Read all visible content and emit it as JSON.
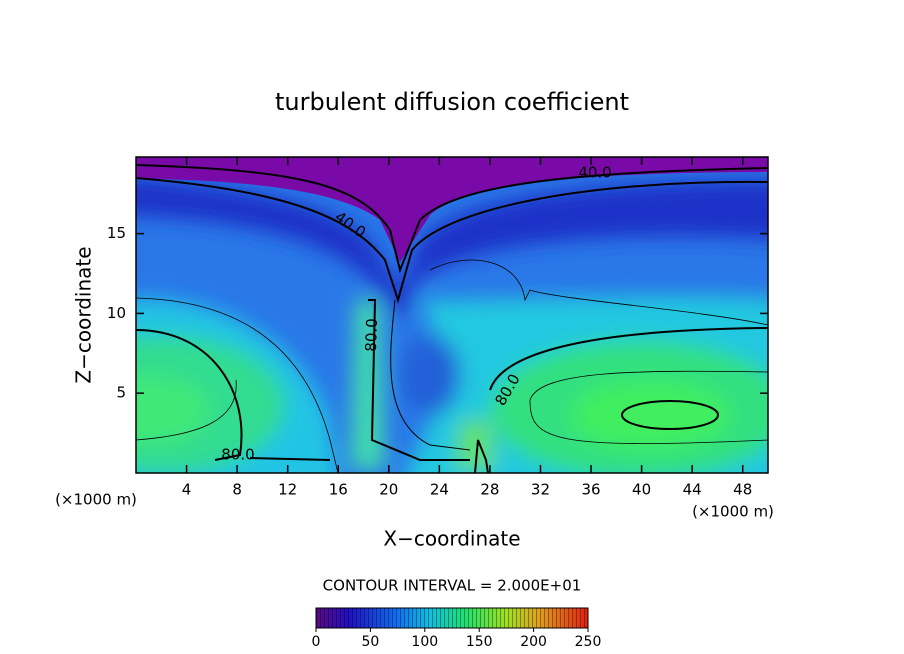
{
  "chart_data": {
    "type": "contour",
    "title": "turbulent diffusion coefficient",
    "xlabel": "X−coordinate",
    "ylabel": "Z−coordinate",
    "x_unit": "(×1000 m)",
    "y_unit": "(×1000 m)",
    "xlim": [
      0,
      50
    ],
    "xticks": [
      4,
      8,
      12,
      16,
      20,
      24,
      28,
      32,
      36,
      40,
      44,
      48
    ],
    "ylim": [
      0,
      19.8
    ],
    "yticks": [
      5,
      10,
      15
    ],
    "contour_interval": "CONTOUR INTERVAL = 2.000E+01",
    "contour_labels": [
      {
        "value": 40,
        "label": "40.0"
      },
      {
        "value": 40,
        "label": "40.0"
      },
      {
        "value": 80,
        "label": "80.0"
      },
      {
        "value": 80,
        "label": "80.0"
      },
      {
        "value": 80,
        "label": "80.0"
      }
    ],
    "colorbar": {
      "clim": [
        0,
        250
      ],
      "ticks": [
        0,
        50,
        100,
        150,
        200,
        250
      ]
    }
  }
}
